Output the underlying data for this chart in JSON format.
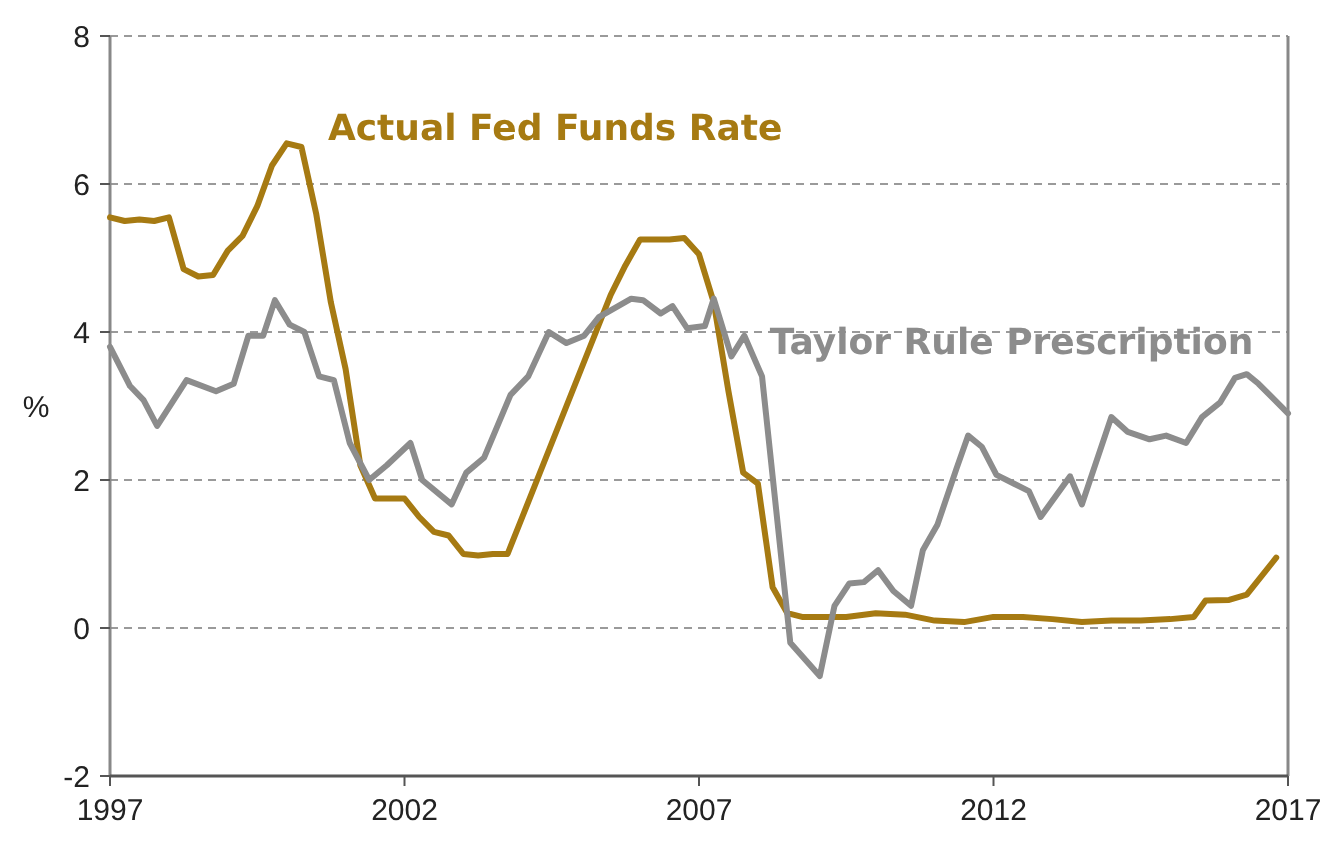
{
  "chart_data": {
    "type": "line",
    "ylabel": "%",
    "xlim": [
      1997,
      2017
    ],
    "xticks": [
      1997,
      2002,
      2007,
      2012,
      2017
    ],
    "ylim": [
      -2,
      8
    ],
    "yticks": [
      -2,
      0,
      2,
      4,
      6,
      8
    ],
    "grid": "y",
    "series": [
      {
        "name": "Actual Fed Funds Rate",
        "color": "#a67a12",
        "x": [
          1997,
          1997.25,
          1997.5,
          1997.75,
          1998,
          1998.25,
          1998.5,
          1998.75,
          1999,
          1999.25,
          1999.5,
          1999.75,
          2000,
          2000.25,
          2000.5,
          2000.75,
          2001,
          2001.25,
          2001.5,
          2001.75,
          2002,
          2002.25,
          2002.5,
          2002.75,
          2003,
          2003.25,
          2003.5,
          2003.75,
          2004,
          2004.25,
          2004.5,
          2004.75,
          2005,
          2005.25,
          2005.5,
          2005.75,
          2006,
          2006.25,
          2006.5,
          2006.75,
          2007,
          2007.25,
          2007.5,
          2007.75,
          2008,
          2008.25,
          2008.5,
          2008.75,
          2009,
          2009.5,
          2010,
          2010.5,
          2011,
          2011.5,
          2012,
          2012.5,
          2013,
          2013.5,
          2014,
          2014.5,
          2015,
          2015.4,
          2015.6,
          2016,
          2016.3,
          2016.8
        ],
        "values": [
          5.55,
          5.5,
          5.52,
          5.5,
          5.55,
          4.85,
          4.75,
          4.77,
          5.1,
          5.3,
          5.7,
          6.25,
          6.55,
          6.5,
          5.6,
          4.4,
          3.5,
          2.2,
          1.75,
          1.75,
          1.75,
          1.5,
          1.3,
          1.25,
          1.0,
          0.98,
          1.0,
          1.0,
          1.5,
          2.0,
          2.5,
          3.0,
          3.5,
          4.0,
          4.5,
          4.9,
          5.25,
          5.25,
          5.25,
          5.27,
          5.05,
          4.4,
          3.2,
          2.1,
          1.95,
          0.55,
          0.2,
          0.15,
          0.15,
          0.15,
          0.2,
          0.18,
          0.1,
          0.08,
          0.15,
          0.15,
          0.12,
          0.08,
          0.1,
          0.1,
          0.12,
          0.15,
          0.37,
          0.38,
          0.45,
          0.95
        ]
      },
      {
        "name": "Taylor Rule Prescription",
        "color": "#8c8c8c",
        "x": [
          1997,
          1997.34,
          1997.57,
          1997.8,
          1998.3,
          1998.8,
          1999.1,
          1999.35,
          1999.6,
          1999.8,
          2000.05,
          2000.3,
          2000.55,
          2000.8,
          2001.07,
          2001.4,
          2001.7,
          2002.1,
          2002.3,
          2002.8,
          2003.05,
          2003.35,
          2003.8,
          2004.1,
          2004.45,
          2004.75,
          2005.05,
          2005.3,
          2005.85,
          2006.05,
          2006.35,
          2006.55,
          2006.8,
          2007.1,
          2007.25,
          2007.55,
          2007.77,
          2008.07,
          2008.55,
          2009.05,
          2009.3,
          2009.55,
          2009.8,
          2010.04,
          2010.3,
          2010.6,
          2010.8,
          2011.05,
          2011.37,
          2011.57,
          2011.8,
          2012.05,
          2012.35,
          2012.6,
          2012.8,
          2013.3,
          2013.5,
          2014,
          2014.28,
          2014.65,
          2014.93,
          2015.27,
          2015.54,
          2015.85,
          2016.1,
          2016.3,
          2016.5,
          2017
        ],
        "values": [
          3.8,
          3.27,
          3.08,
          2.73,
          3.35,
          3.2,
          3.3,
          3.95,
          3.95,
          4.43,
          4.1,
          4.0,
          3.4,
          3.35,
          2.5,
          2.0,
          2.2,
          2.5,
          2.0,
          1.67,
          2.1,
          2.3,
          3.15,
          3.4,
          4.0,
          3.85,
          3.95,
          4.2,
          4.45,
          4.43,
          4.25,
          4.35,
          4.05,
          4.08,
          4.45,
          3.67,
          3.95,
          3.4,
          -0.2,
          -0.65,
          0.3,
          0.6,
          0.62,
          0.78,
          0.5,
          0.3,
          1.05,
          1.4,
          2.15,
          2.6,
          2.45,
          2.07,
          1.95,
          1.85,
          1.5,
          2.05,
          1.67,
          2.85,
          2.65,
          2.55,
          2.6,
          2.5,
          2.85,
          3.05,
          3.38,
          3.43,
          3.3,
          2.9
        ]
      }
    ]
  }
}
